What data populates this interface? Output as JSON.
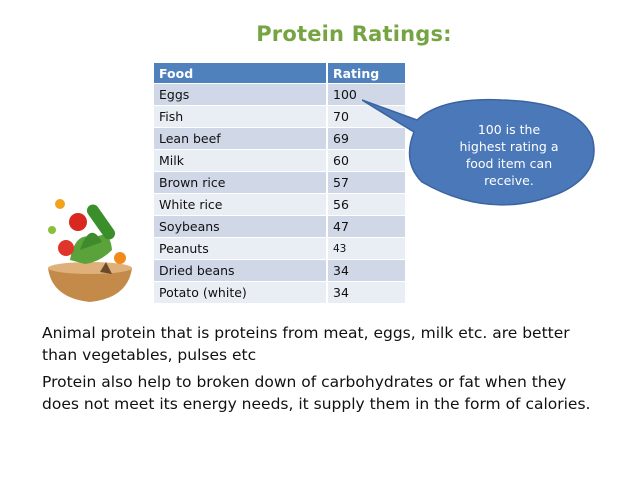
{
  "title": "Protein Ratings:",
  "table": {
    "headers": [
      "Food",
      "Rating"
    ],
    "rows": [
      {
        "food": "Eggs",
        "rating": "100"
      },
      {
        "food": "Fish",
        "rating": "70"
      },
      {
        "food": "Lean beef",
        "rating": "69"
      },
      {
        "food": "Milk",
        "rating": "60"
      },
      {
        "food": "Brown rice",
        "rating": "57"
      },
      {
        "food": "White rice",
        "rating": "56"
      },
      {
        "food": "Soybeans",
        "rating": "47"
      },
      {
        "food": "Peanuts",
        "rating": "43"
      },
      {
        "food": "Dried beans",
        "rating": "34"
      },
      {
        "food": "Potato (white)",
        "rating": "34"
      }
    ]
  },
  "callout": {
    "lines": [
      "100 is the",
      "highest rating a",
      "food item can",
      "receive."
    ]
  },
  "paragraphs": [
    "Animal protein that is proteins from meat, eggs, milk etc. are better than vegetables, pulses etc",
    "Protein also help to broken down of carbohydrates or fat when they does not meet its energy needs, it supply them in the form of calories."
  ],
  "colors": {
    "title": "#76a442",
    "table_header": "#4f81bd",
    "row_odd": "#d0d8e8",
    "row_even": "#e9edf4",
    "callout_fill": "#4a78b8"
  },
  "image": "salad-bowl"
}
